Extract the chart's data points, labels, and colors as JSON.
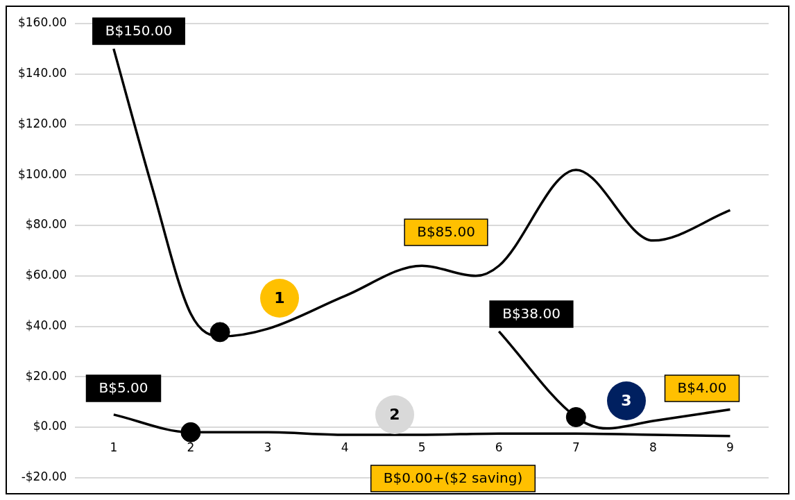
{
  "chart_data": {
    "type": "line",
    "series": [
      {
        "color": "#000000",
        "x": [
          1,
          1.5,
          2,
          2.4,
          3,
          4,
          5,
          5.7,
          6,
          7,
          8,
          9
        ],
        "values": [
          150,
          95,
          45,
          36,
          39,
          52,
          64,
          60,
          64,
          102,
          74,
          86
        ]
      },
      {
        "color": "#000000",
        "x": [
          1,
          2,
          3,
          4,
          5,
          6,
          7,
          8,
          9
        ],
        "values": [
          5,
          -2,
          -2,
          -3,
          -3,
          -2.5,
          -2.5,
          -3,
          -3.5
        ]
      },
      {
        "color": "#000000",
        "x": [
          6,
          7,
          7.4,
          8,
          9
        ],
        "values": [
          38,
          4,
          -0.5,
          2.5,
          7
        ]
      },
      {
        "type": "scatter",
        "color": "#000000",
        "marker": "circle",
        "x": [
          2.38,
          2,
          7
        ],
        "values": [
          37.7,
          -2,
          4
        ]
      }
    ],
    "xlim": [
      0.5,
      9.5
    ],
    "xticks": [
      1,
      2,
      3,
      4,
      5,
      6,
      7,
      8,
      9
    ],
    "ylim": [
      -20,
      160
    ],
    "yticks": [
      {
        "value": -20,
        "label": "-$20.00"
      },
      {
        "value": 0,
        "label": "$0.00"
      },
      {
        "value": 20,
        "label": "$20.00"
      },
      {
        "value": 40,
        "label": "$40.00"
      },
      {
        "value": 60,
        "label": "$60.00"
      },
      {
        "value": 80,
        "label": "$80.00"
      },
      {
        "value": 100,
        "label": "$100.00"
      },
      {
        "value": 120,
        "label": "$120.00"
      },
      {
        "value": 140,
        "label": "$140.00"
      },
      {
        "value": 160,
        "label": "$160.00"
      }
    ],
    "grid": "y",
    "marker": "none",
    "line_style": "solid",
    "annotations": [
      "B$150.00",
      "B$85.00",
      "B$38.00",
      "B$5.00",
      "B$4.00",
      "B$0.00+($2 saving)",
      "1",
      "2",
      "3"
    ]
  }
}
